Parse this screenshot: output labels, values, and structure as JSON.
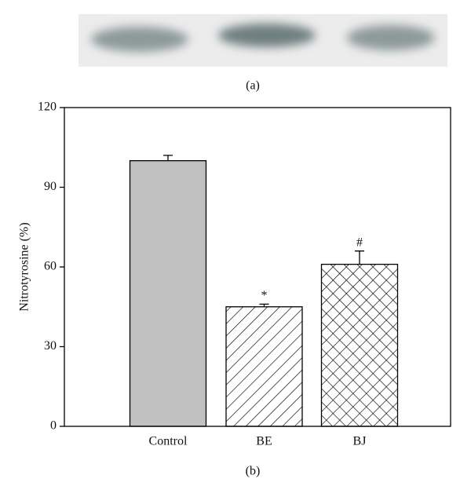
{
  "panel_a": {
    "label": "(a)"
  },
  "chart_data": {
    "type": "bar",
    "panel_label": "(b)",
    "y_label": "Nitrotyrosine (%)",
    "categories": [
      "Control",
      "BE",
      "BJ"
    ],
    "values": [
      100,
      45,
      61
    ],
    "errors": [
      2,
      1,
      5
    ],
    "annotations": [
      null,
      "*",
      "#"
    ],
    "colors": [
      "#c0c0c0",
      "#ffffff",
      "#ffffff"
    ],
    "patterns": [
      "solid",
      "diagonal",
      "crosshatch"
    ],
    "ylim": [
      0,
      120
    ],
    "yticks": [
      0,
      30,
      60,
      90,
      120
    ],
    "grid": false
  }
}
